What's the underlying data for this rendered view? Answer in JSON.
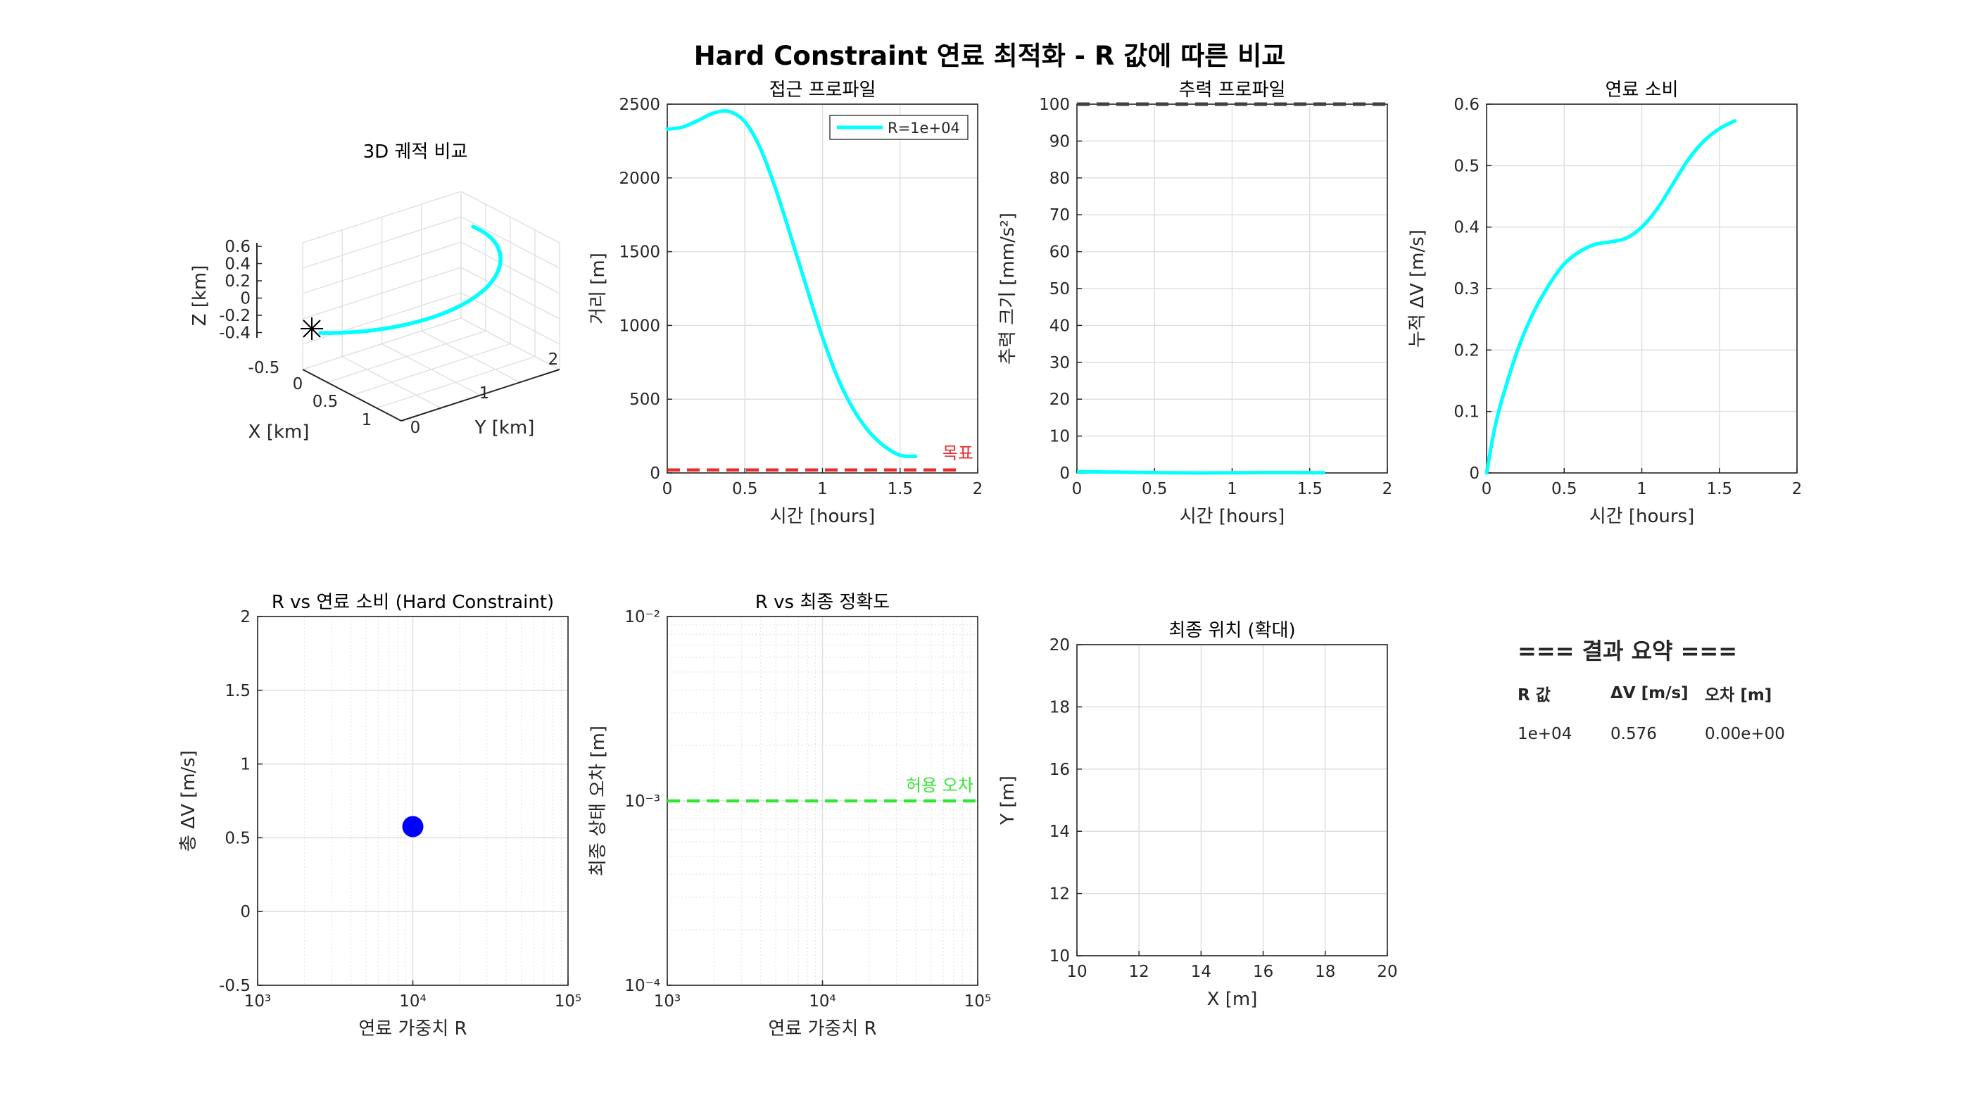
{
  "figure_title": "Hard Constraint 연료 최적화 - R 값에 따른 비교",
  "chart_data": [
    {
      "id": "traj3d",
      "type": "line",
      "title": "3D 궤적 비교",
      "xlabel": "X [km]",
      "ylabel": "Y [km]",
      "zlabel": "Z [km]",
      "x_ticks": [
        "-0.5",
        "0",
        "0.5",
        "1"
      ],
      "y_ticks": [
        "0",
        "1",
        "2"
      ],
      "z_ticks": [
        "0.6",
        "0.4",
        "0.2",
        "0",
        "-0.2",
        "-0.4"
      ],
      "series": [
        {
          "color": "#00FFFF"
        }
      ],
      "markers": [
        {
          "symbol": "asterisk",
          "color": "#000000",
          "label": "target"
        }
      ]
    },
    {
      "id": "approach",
      "type": "line",
      "title": "접근 프로파일",
      "xlabel": "시간 [hours]",
      "ylabel": "거리 [m]",
      "xlim": [
        0,
        2
      ],
      "ylim": [
        0,
        2500
      ],
      "x_ticks": [
        "0",
        "0.5",
        "1",
        "1.5",
        "2"
      ],
      "y_ticks": [
        "0",
        "500",
        "1000",
        "1500",
        "2000",
        "2500"
      ],
      "grid": true,
      "legend": {
        "position": "top-right",
        "entries": [
          "R=1e+04"
        ]
      },
      "series": [
        {
          "name": "R=1e+04",
          "color": "#00FFFF",
          "x": [
            0,
            0.1,
            0.2,
            0.3,
            0.4,
            0.5,
            0.6,
            0.7,
            0.8,
            0.9,
            1.0,
            1.1,
            1.2,
            1.3,
            1.4,
            1.5,
            1.6
          ],
          "y": [
            2330,
            2345,
            2390,
            2440,
            2450,
            2380,
            2200,
            1920,
            1590,
            1250,
            920,
            640,
            430,
            280,
            180,
            120,
            112
          ]
        }
      ],
      "reference_line": {
        "y": 20,
        "color": "#E62E2E",
        "style": "dashed",
        "label": "목표"
      }
    },
    {
      "id": "thrust",
      "type": "line",
      "title": "추력 프로파일",
      "xlabel": "시간 [hours]",
      "ylabel": "추력 크기 [mm/s²]",
      "xlim": [
        0,
        2
      ],
      "ylim": [
        0,
        100
      ],
      "x_ticks": [
        "0",
        "0.5",
        "1",
        "1.5",
        "2"
      ],
      "y_ticks": [
        "0",
        "10",
        "20",
        "30",
        "40",
        "50",
        "60",
        "70",
        "80",
        "90",
        "100"
      ],
      "grid": true,
      "series": [
        {
          "color": "#00FFFF",
          "x": [
            0,
            0.2,
            0.4,
            0.6,
            0.8,
            1.0,
            1.2,
            1.4,
            1.6
          ],
          "y": [
            0.35,
            0.25,
            0.15,
            0.05,
            0.0,
            0.05,
            0.1,
            0.1,
            0.05
          ]
        }
      ],
      "reference_line": {
        "y": 100,
        "color": "#404040",
        "style": "dashed"
      }
    },
    {
      "id": "fuel",
      "type": "line",
      "title": "연료 소비",
      "xlabel": "시간 [hours]",
      "ylabel": "누적 ΔV [m/s]",
      "xlim": [
        0,
        2
      ],
      "ylim": [
        0,
        0.6
      ],
      "x_ticks": [
        "0",
        "0.5",
        "1",
        "1.5",
        "2"
      ],
      "y_ticks": [
        "0",
        "0.1",
        "0.2",
        "0.3",
        "0.4",
        "0.5",
        "0.6"
      ],
      "grid": true,
      "series": [
        {
          "color": "#00FFFF",
          "x": [
            0,
            0.05,
            0.1,
            0.2,
            0.3,
            0.4,
            0.5,
            0.6,
            0.7,
            0.8,
            0.9,
            1.0,
            1.1,
            1.2,
            1.3,
            1.4,
            1.5,
            1.6
          ],
          "y": [
            0,
            0.07,
            0.12,
            0.2,
            0.26,
            0.305,
            0.34,
            0.36,
            0.372,
            0.376,
            0.382,
            0.4,
            0.43,
            0.47,
            0.51,
            0.54,
            0.56,
            0.573
          ]
        }
      ]
    },
    {
      "id": "r_vs_fuel",
      "type": "scatter",
      "title": "R vs 연료 소비 (Hard Constraint)",
      "xlabel": "연료 가중치 R",
      "ylabel": "총 ΔV [m/s]",
      "xscale": "log",
      "xlim": [
        1000,
        100000
      ],
      "ylim": [
        -0.5,
        2
      ],
      "x_ticks": [
        "10³",
        "10⁴",
        "10⁵"
      ],
      "y_ticks": [
        "-0.5",
        "0",
        "0.5",
        "1",
        "1.5",
        "2"
      ],
      "grid": true,
      "series": [
        {
          "color": "#0000FF",
          "x": [
            10000
          ],
          "y": [
            0.576
          ]
        }
      ]
    },
    {
      "id": "r_vs_accuracy",
      "type": "line",
      "title": "R vs 최종 정확도",
      "xlabel": "연료 가중치 R",
      "ylabel": "최종 상태 오차 [m]",
      "xscale": "log",
      "yscale": "log",
      "xlim": [
        1000,
        100000
      ],
      "ylim": [
        0.0001,
        0.01
      ],
      "x_ticks": [
        "10³",
        "10⁴",
        "10⁵"
      ],
      "y_ticks": [
        "10⁻²",
        "10⁻³",
        "10⁻⁴"
      ],
      "grid": true,
      "reference_line": {
        "y": 0.001,
        "color": "#33E633",
        "style": "dashed",
        "label": "허용 오차"
      }
    },
    {
      "id": "final_pos",
      "type": "scatter",
      "title": "최종 위치 (확대)",
      "xlabel": "X [m]",
      "ylabel": "Y [m]",
      "xlim": [
        10,
        20
      ],
      "ylim": [
        10,
        20
      ],
      "x_ticks": [
        "10",
        "12",
        "14",
        "16",
        "18",
        "20"
      ],
      "y_ticks": [
        "10",
        "12",
        "14",
        "16",
        "18",
        "20"
      ],
      "grid": true,
      "series": []
    }
  ],
  "summary": {
    "heading": "=== 결과 요약 ===",
    "columns": [
      "R 값",
      "ΔV [m/s]",
      "오차 [m]"
    ],
    "rows": [
      [
        "1e+04",
        "0.576",
        "0.00e+00"
      ]
    ]
  }
}
